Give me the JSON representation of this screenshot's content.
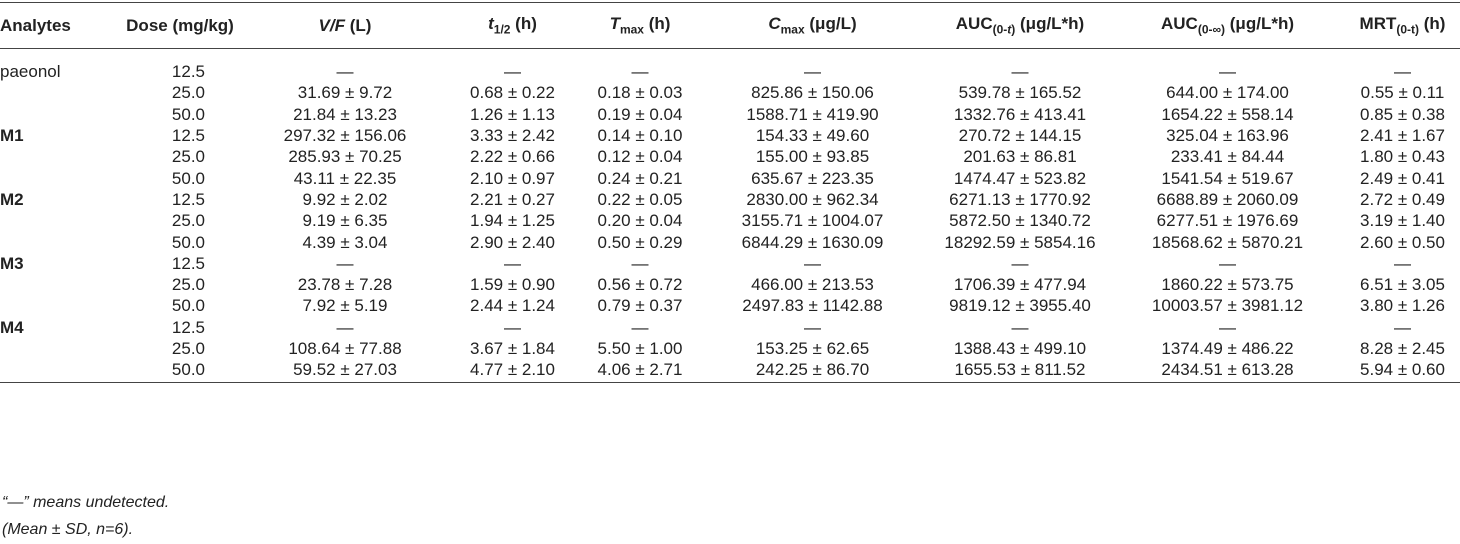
{
  "table": {
    "header": [
      [
        "Analytes"
      ],
      [
        "Dose (mg/kg)"
      ],
      [
        "V/F",
        " (L)"
      ],
      [
        "t",
        "1/2",
        " (h)"
      ],
      [
        "T",
        "max",
        " (h)"
      ],
      [
        "C",
        "max",
        " (μg/L)"
      ],
      [
        "AUC",
        "(0-",
        "t",
        ")",
        " (μg/L*h)"
      ],
      [
        "AUC",
        "(0-∞)",
        " (μg/L*h)"
      ],
      [
        "MRT",
        "(0-t)",
        " (h)"
      ]
    ],
    "rows": [
      [
        "paeonol",
        "12.5",
        "—",
        "—",
        "—",
        "—",
        "—",
        "—",
        "—"
      ],
      [
        null,
        "25.0",
        "31.69 ± 9.72",
        "0.68 ± 0.22",
        "0.18 ± 0.03",
        "825.86 ± 150.06",
        "539.78 ± 165.52",
        "644.00 ± 174.00",
        "0.55 ± 0.11"
      ],
      [
        null,
        "50.0",
        "21.84 ± 13.23",
        "1.26 ± 1.13",
        "0.19 ± 0.04",
        "1588.71 ± 419.90",
        "1332.76 ± 413.41",
        "1654.22 ± 558.14",
        "0.85 ± 0.38"
      ],
      [
        "M1",
        "12.5",
        "297.32 ± 156.06",
        "3.33 ± 2.42",
        "0.14 ± 0.10",
        "154.33 ± 49.60",
        "270.72 ± 144.15",
        "325.04 ± 163.96",
        "2.41 ± 1.67"
      ],
      [
        null,
        "25.0",
        "285.93 ± 70.25",
        "2.22 ± 0.66",
        "0.12 ± 0.04",
        "155.00 ± 93.85",
        "201.63 ± 86.81",
        "233.41 ± 84.44",
        "1.80 ± 0.43"
      ],
      [
        null,
        "50.0",
        "43.11 ± 22.35",
        "2.10 ± 0.97",
        "0.24 ± 0.21",
        "635.67 ± 223.35",
        "1474.47 ± 523.82",
        "1541.54 ± 519.67",
        "2.49 ± 0.41"
      ],
      [
        "M2",
        "12.5",
        "9.92 ± 2.02",
        "2.21 ± 0.27",
        "0.22 ± 0.05",
        "2830.00 ± 962.34",
        "6271.13 ± 1770.92",
        "6688.89 ± 2060.09",
        "2.72 ± 0.49"
      ],
      [
        null,
        "25.0",
        "9.19 ± 6.35",
        "1.94 ± 1.25",
        "0.20 ± 0.04",
        "3155.71 ± 1004.07",
        "5872.50 ± 1340.72",
        "6277.51 ± 1976.69",
        "3.19 ± 1.40"
      ],
      [
        null,
        "50.0",
        "4.39 ± 3.04",
        "2.90 ± 2.40",
        "0.50 ± 0.29",
        "6844.29 ± 1630.09",
        "18292.59 ± 5854.16",
        "18568.62 ± 5870.21",
        "2.60 ± 0.50"
      ],
      [
        "M3",
        "12.5",
        "—",
        "—",
        "—",
        "—",
        "—",
        "—",
        "—"
      ],
      [
        null,
        "25.0",
        "23.78 ± 7.28",
        "1.59 ± 0.90",
        "0.56 ± 0.72",
        "466.00 ± 213.53",
        "1706.39 ± 477.94",
        "1860.22 ± 573.75",
        "6.51 ± 3.05"
      ],
      [
        null,
        "50.0",
        "7.92 ± 5.19",
        "2.44 ± 1.24",
        "0.79 ± 0.37",
        "2497.83 ± 1142.88",
        "9819.12 ± 3955.40",
        "10003.57 ± 3981.12",
        "3.80 ± 1.26"
      ],
      [
        "M4",
        "12.5",
        "—",
        "—",
        "—",
        "—",
        "—",
        "—",
        "—"
      ],
      [
        null,
        "25.0",
        "108.64 ± 77.88",
        "3.67 ± 1.84",
        "5.50 ± 1.00",
        "153.25 ± 62.65",
        "1388.43 ± 499.10",
        "1374.49 ± 486.22",
        "8.28 ± 2.45"
      ],
      [
        null,
        "50.0",
        "59.52 ± 27.03",
        "4.77 ± 2.10",
        "4.06 ± 2.71",
        "242.25 ± 86.70",
        "1655.53 ± 811.52",
        "2434.51 ± 613.28",
        "5.94 ± 0.60"
      ]
    ]
  },
  "footnotes": [
    "“—” means undetected.",
    "(Mean ± SD, n=6)."
  ]
}
